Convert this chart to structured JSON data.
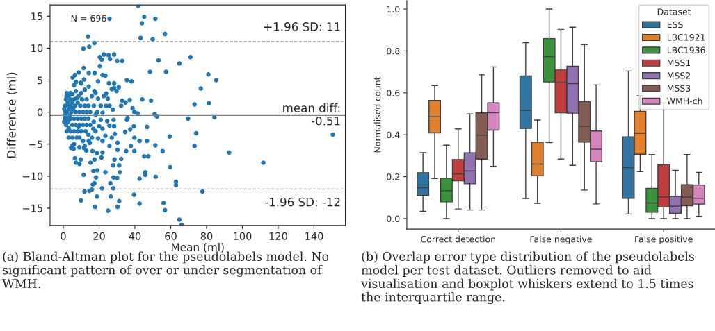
{
  "chart_data": [
    {
      "type": "scatter",
      "xlabel": "Mean (ml)",
      "ylabel": "Difference (ml)",
      "xlim": [
        -7.4,
        157.5
      ],
      "ylim": [
        -17.7,
        16.75
      ],
      "xticks": [
        0,
        20,
        40,
        60,
        80,
        100,
        120,
        140
      ],
      "yticks": [
        -15,
        -10,
        -5,
        0,
        5,
        10,
        15
      ],
      "grid": false,
      "marker": "circle",
      "series": [
        {
          "color": "#1f77b4",
          "x": [
            41.8,
            25.8,
            45.2,
            43.9,
            51.4,
            13.8,
            43.2,
            49.9,
            56.8,
            17.4,
            14.5,
            11.2,
            22.6,
            25.3,
            28.4,
            20.4,
            21.5,
            26.1,
            30.1,
            32.9,
            53.2,
            64.8,
            71.0,
            20.4,
            11.4,
            48.4,
            57.4,
            81.0,
            85.4,
            14.2,
            17.5,
            8.6,
            6.5,
            5.2,
            21.9,
            23.5,
            35.5,
            38.1,
            7.1,
            9.7,
            11.6,
            19.4,
            25.5,
            28.4,
            76.8,
            28.4,
            31.0,
            27.1,
            29.7,
            14.2,
            17.4,
            23.9,
            22.6,
            24.8,
            19.4,
            44.1,
            49.0,
            32.9,
            37.1,
            34.8,
            81.3,
            73.3,
            23.9,
            25.8,
            20.9,
            27.7,
            32.3,
            38.7,
            39.7,
            41.5,
            51.0,
            52.3,
            69.7,
            84.4,
            35.9,
            35.5,
            24.5,
            28.1,
            20.9,
            18.1,
            21.9,
            28.4,
            25.8,
            39.4,
            46.7,
            20.0,
            16.8,
            21.9,
            34.6,
            37.4,
            150.5,
            74.2,
            28.8,
            27.1,
            23.5,
            59.4,
            39.7,
            42.6,
            46.7,
            19.4,
            21.9,
            14.2,
            14.8,
            11.6,
            30.3,
            25.8,
            37.7,
            51.4,
            73.3,
            4.3,
            5.8,
            30.3,
            35.1,
            39.7,
            55.5,
            92.6,
            16.3,
            18.8,
            21.9,
            12.9,
            45.2,
            47.5,
            6.5,
            28.6,
            32.3,
            17.4,
            21.3,
            9.7,
            15.2,
            7.1,
            9.0,
            111.7,
            27.9,
            31.2,
            59.7,
            31.6,
            45.8,
            23.5,
            16.8,
            19.0,
            45.8,
            11.4,
            18.3,
            28.1,
            30.1,
            51.6,
            42.6,
            62.9,
            62.9,
            17.4,
            16.5,
            26.3,
            21.6,
            27.9,
            16.0,
            14.6,
            11.9,
            77.7,
            39.5,
            18.8,
            26.5,
            9.9,
            31.2,
            56.0,
            42.6,
            17.8,
            30.3,
            25.0,
            56.8,
            64.8,
            66.1,
            0.5,
            1,
            1,
            1.5,
            1.5,
            2,
            2,
            2,
            2.5,
            2.5,
            3,
            3,
            3,
            3,
            3.5,
            3.5,
            4,
            4,
            4,
            4,
            4.5,
            5,
            5,
            5,
            5,
            5.5,
            6,
            6,
            6,
            6,
            6.5,
            7,
            7,
            7,
            7.5,
            8,
            8,
            8,
            8.5,
            9,
            9,
            9,
            9.5,
            10,
            10,
            10,
            10.5,
            11,
            11,
            11,
            12,
            12,
            12,
            12.5,
            13,
            13,
            13,
            14,
            14,
            14,
            15,
            15,
            16,
            16,
            17,
            17,
            18,
            18,
            19,
            0.8,
            1.2,
            2.2,
            3.2,
            4.2,
            1.8,
            0.5,
            7.5,
            8.5,
            6,
            5,
            9,
            12,
            10
          ],
          "values": [
            16.6,
            14.6,
            14.9,
            13.9,
            14.6,
            11.8,
            11.6,
            11.4,
            12.2,
            10.8,
            10.2,
            9.9,
            9.0,
            8.9,
            9.0,
            8.6,
            8.2,
            8.3,
            8.0,
            8.0,
            8.1,
            7.6,
            8.6,
            7.2,
            6.9,
            6.3,
            6.3,
            5.9,
            5.0,
            6.1,
            6.1,
            6.2,
            5.8,
            5.4,
            5.8,
            5.7,
            5.0,
            4.8,
            4.7,
            4.6,
            5.1,
            4.8,
            4.5,
            4.5,
            3.7,
            3.8,
            3.9,
            3.6,
            3.3,
            4.0,
            3.3,
            2.9,
            2.5,
            2.1,
            2.1,
            2.0,
            1.8,
            1.8,
            1.9,
            1.5,
            1.4,
            1.2,
            1.0,
            1.0,
            1.0,
            0.4,
            1.0,
            0.6,
            0.0,
            -0.2,
            -0.3,
            -0.7,
            -1.0,
            -0.8,
            -0.9,
            -1.2,
            -1.4,
            -1.2,
            -1.2,
            -0.4,
            -0.1,
            -2.2,
            -2.1,
            -2.2,
            -2.3,
            -2.2,
            -2.6,
            -2.6,
            -3.1,
            -2.7,
            -3.5,
            -3.3,
            -3.4,
            -4.0,
            -3.7,
            -3.8,
            -4.0,
            -4.5,
            -4.5,
            -4.1,
            -4.5,
            -4.5,
            -4.8,
            -5.6,
            -4.8,
            -5.3,
            -5.3,
            -5.2,
            -5.3,
            -5.6,
            -5.7,
            -5.9,
            -6.1,
            -6.1,
            -6.1,
            -6.3,
            -6.1,
            -6.4,
            -6.3,
            -6.0,
            -6.9,
            -6.9,
            -7.2,
            -7.4,
            -7.3,
            -7.4,
            -7.1,
            -7.4,
            -7.9,
            -7.9,
            -8.1,
            -7.9,
            -8.3,
            -8.3,
            -8.6,
            -9.4,
            -9.4,
            -9.4,
            -9.2,
            -9.1,
            -9.8,
            -9.8,
            -10.2,
            -10.2,
            -10.3,
            -10.1,
            -10.4,
            -10.9,
            -11.4,
            -11.1,
            -11.3,
            -11.1,
            -11.9,
            -11.9,
            -12.1,
            -12.3,
            -12.4,
            -12.4,
            -12.9,
            -13.2,
            -13.2,
            -13.8,
            -13.9,
            -14.2,
            -14.3,
            -14.8,
            -14.8,
            -15.4,
            -15.3,
            -16.8,
            -17.6,
            0.5,
            1,
            -1,
            2,
            -2,
            0,
            3,
            -3,
            1.5,
            -1.5,
            0.5,
            2.5,
            -2.5,
            -4,
            1,
            -0.5,
            2,
            -1,
            -3,
            3,
            0,
            1.5,
            -2,
            -4,
            2.8,
            0.5,
            -1,
            2,
            -3,
            -5,
            1,
            0,
            3.3,
            -2,
            -4,
            1.5,
            -1,
            -3,
            2.5,
            0,
            -2,
            -4,
            1,
            -1,
            3,
            -3,
            2,
            0,
            -2,
            -4.5,
            1,
            -1,
            3.5,
            -3,
            0,
            -2,
            2,
            -1,
            1,
            -3.5,
            0,
            -2,
            2.5,
            -4,
            1,
            -1.5,
            -3,
            3,
            0,
            -0.5,
            0,
            -0.8,
            -1.2,
            0.8,
            2.5,
            -1.5,
            2.2,
            -2.3,
            4.2,
            -5.3,
            -5.5,
            -5.3,
            4.5
          ]
        }
      ],
      "ref_lines": [
        {
          "axis": "y",
          "value": 11,
          "label": "+1.96 SD: 11",
          "color": "#808080",
          "line_style": "dashed"
        },
        {
          "axis": "y",
          "value": -0.51,
          "label": "mean diff:\n-0.51",
          "color": "#808080",
          "line_style": "solid"
        },
        {
          "axis": "y",
          "value": -12,
          "label": "-1.96 SD: -12",
          "color": "#808080",
          "line_style": "dashed"
        }
      ],
      "annotations": [
        "N = 696",
        "(a) Bland-Altman plot for the pseudolabels model. No significant pattern of over or under segmentation of WMH."
      ]
    },
    {
      "type": "box",
      "ylabel": "Normalised count",
      "categories": [
        "Correct detection",
        "False negative",
        "False positive"
      ],
      "ylim": [
        -0.05,
        1.04
      ],
      "yticks": [
        {
          "value": 0,
          "label": "0.0"
        },
        0.2,
        0.4,
        0.6,
        0.8,
        {
          "value": 1,
          "label": "1.0"
        }
      ],
      "grid": false,
      "legend": "top right",
      "legend_title": "Dataset",
      "series": [
        {
          "name": "ESS",
          "color": "#3274a1",
          "boxes": [
            {
              "low": 0.035,
              "q1": 0.11,
              "median": 0.147,
              "q3": 0.219,
              "high": 0.315
            },
            {
              "low": 0.096,
              "q1": 0.43,
              "median": 0.516,
              "q3": 0.681,
              "high": 0.839
            },
            {
              "low": 0.022,
              "q1": 0.097,
              "median": 0.243,
              "q3": 0.39,
              "high": 0.704
            }
          ]
        },
        {
          "name": "LBC1921",
          "color": "#e1812c",
          "boxes": [
            {
              "low": 0.191,
              "q1": 0.409,
              "median": 0.486,
              "q3": 0.564,
              "high": 0.635
            },
            {
              "low": 0.073,
              "q1": 0.204,
              "median": 0.26,
              "q3": 0.364,
              "high": 0.47
            },
            {
              "low": 0.224,
              "q1": 0.307,
              "median": 0.407,
              "q3": 0.512,
              "high": 0.586
            }
          ]
        },
        {
          "name": "LBC1936",
          "color": "#3a923a",
          "boxes": [
            {
              "low": 0.0,
              "q1": 0.08,
              "median": 0.133,
              "q3": 0.193,
              "high": 0.35
            },
            {
              "low": 0.362,
              "q1": 0.652,
              "median": 0.773,
              "q3": 0.859,
              "high": 1.0
            },
            {
              "low": 0.0,
              "q1": 0.03,
              "median": 0.074,
              "q3": 0.144,
              "high": 0.306
            }
          ]
        },
        {
          "name": "MSS1",
          "color": "#c03d3e",
          "boxes": [
            {
              "low": 0.046,
              "q1": 0.18,
              "median": 0.213,
              "q3": 0.282,
              "high": 0.428
            },
            {
              "low": 0.284,
              "q1": 0.505,
              "median": 0.649,
              "q3": 0.709,
              "high": 0.903
            },
            {
              "low": 0.0,
              "q1": 0.055,
              "median": 0.103,
              "q3": 0.257,
              "high": 0.552
            }
          ]
        },
        {
          "name": "MSS2",
          "color": "#9372b2",
          "boxes": [
            {
              "low": 0.041,
              "q1": 0.166,
              "median": 0.227,
              "q3": 0.314,
              "high": 0.499
            },
            {
              "low": 0.254,
              "q1": 0.503,
              "median": 0.644,
              "q3": 0.727,
              "high": 0.913
            },
            {
              "low": 0.0,
              "q1": 0.025,
              "median": 0.059,
              "q3": 0.106,
              "high": 0.23
            }
          ]
        },
        {
          "name": "MSS3",
          "color": "#845b53",
          "boxes": [
            {
              "low": 0.041,
              "q1": 0.284,
              "median": 0.398,
              "q3": 0.504,
              "high": 0.686
            },
            {
              "low": 0.136,
              "q1": 0.365,
              "median": 0.44,
              "q3": 0.558,
              "high": 0.83
            },
            {
              "low": 0.0,
              "q1": 0.061,
              "median": 0.102,
              "q3": 0.162,
              "high": 0.306
            }
          ]
        },
        {
          "name": "WMH-ch",
          "color": "#d684bd",
          "boxes": [
            {
              "low": 0.249,
              "q1": 0.422,
              "median": 0.505,
              "q3": 0.552,
              "high": 0.724
            },
            {
              "low": 0.07,
              "q1": 0.271,
              "median": 0.331,
              "q3": 0.418,
              "high": 0.638
            },
            {
              "low": 0.011,
              "q1": 0.069,
              "median": 0.097,
              "q3": 0.16,
              "high": 0.22
            }
          ]
        }
      ],
      "annotations": [
        "(b) Overlap error type distribution of the pseudolabels model per test dataset. Outliers removed to aid visualisation and boxplot whiskers extend to 1.5 times the interquartile range."
      ]
    }
  ]
}
